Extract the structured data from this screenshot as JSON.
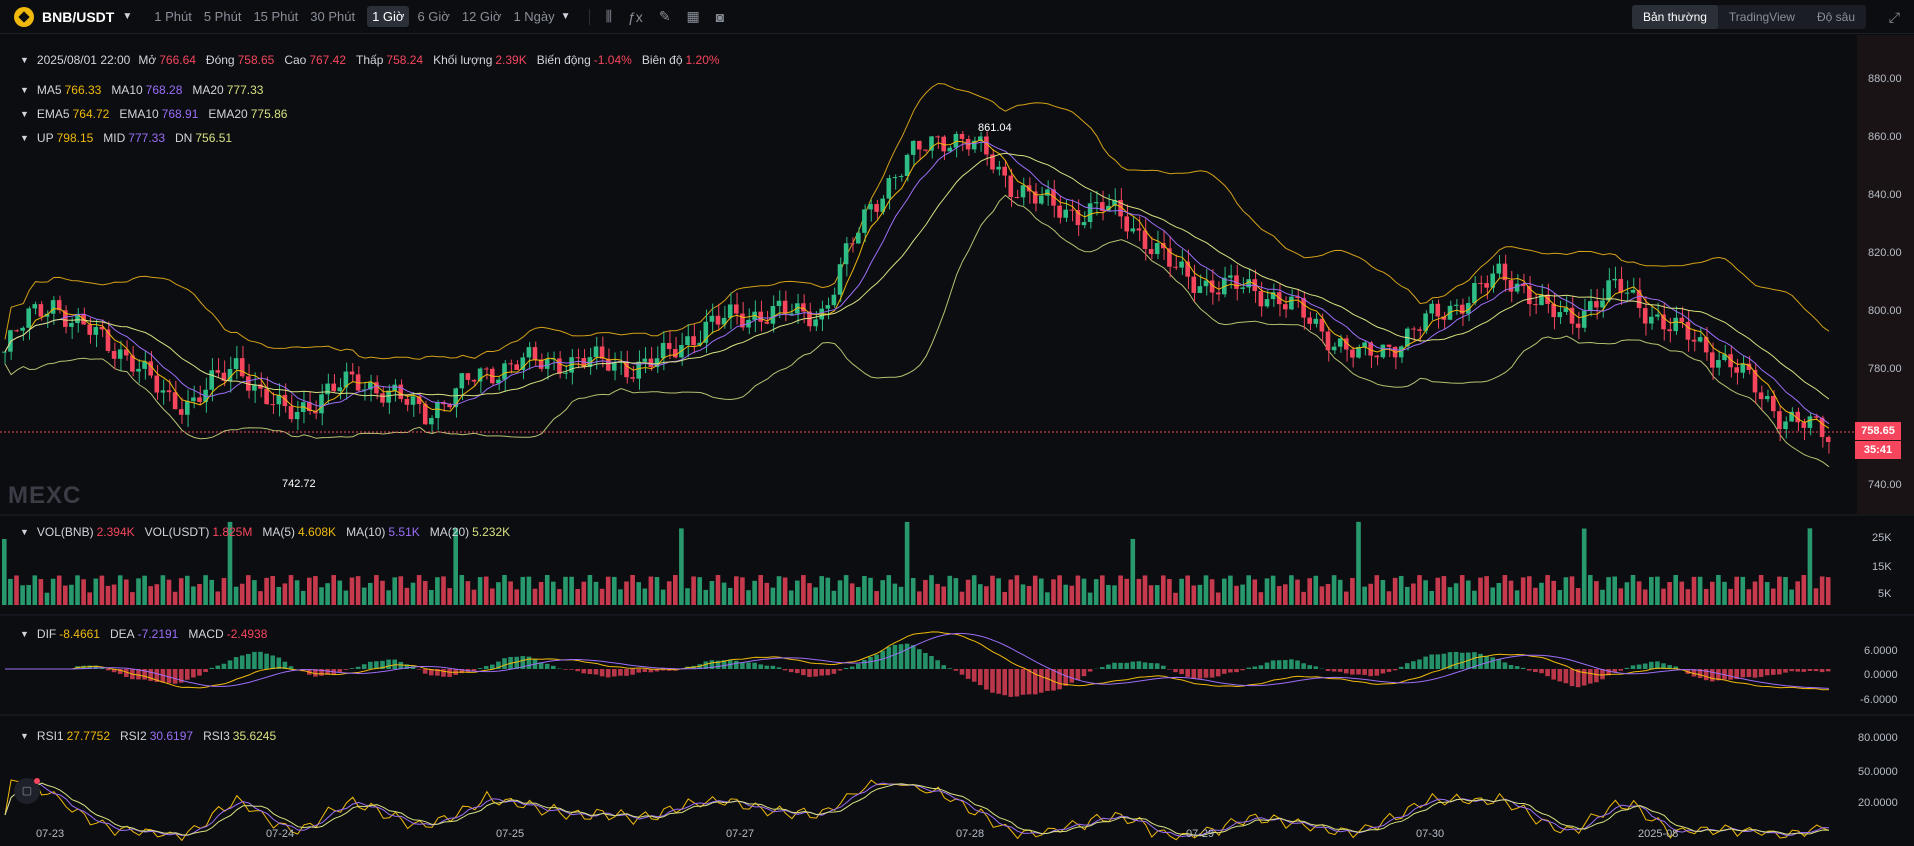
{
  "toolbar": {
    "pair": "BNB/USDT",
    "intervals": [
      "1 Phút",
      "5 Phút",
      "15 Phút",
      "30 Phút",
      "1 Giờ",
      "6 Giờ",
      "12 Giờ",
      "1 Ngày"
    ],
    "active_interval": "1 Giờ",
    "views": [
      "Bản thường",
      "TradingView",
      "Độ sâu"
    ],
    "active_view": "Bản thường"
  },
  "ohlc": {
    "date": "2025/08/01 22:00",
    "open_label": "Mở",
    "open": "766.64",
    "close_label": "Đóng",
    "close": "758.65",
    "high_label": "Cao",
    "high": "767.42",
    "low_label": "Thấp",
    "low": "758.24",
    "volume_label": "Khối lượng",
    "volume": "2.39K",
    "change_label": "Biến động",
    "change": "-1.04%",
    "amplitude_label": "Biên độ",
    "amplitude": "1.20%"
  },
  "ma": {
    "ma5_label": "MA5",
    "ma5": "766.33",
    "ma10_label": "MA10",
    "ma10": "768.28",
    "ma20_label": "MA20",
    "ma20": "777.33"
  },
  "ema": {
    "ema5_label": "EMA5",
    "ema5": "764.72",
    "ema10_label": "EMA10",
    "ema10": "768.91",
    "ema20_label": "EMA20",
    "ema20": "775.86"
  },
  "boll": {
    "up_label": "UP",
    "up": "798.15",
    "mid_label": "MID",
    "mid": "777.33",
    "dn_label": "DN",
    "dn": "756.51"
  },
  "vol": {
    "vol_bnb_label": "VOL(BNB)",
    "vol_bnb": "2.394K",
    "vol_usdt_label": "VOL(USDT)",
    "vol_usdt": "1.825M",
    "ma5_label": "MA(5)",
    "ma5": "4.608K",
    "ma10_label": "MA(10)",
    "ma10": "5.51K",
    "ma20_label": "MA(20)",
    "ma20": "5.232K"
  },
  "macd": {
    "dif_label": "DIF",
    "dif": "-8.4661",
    "dea_label": "DEA",
    "dea": "-7.2191",
    "macd_label": "MACD",
    "macd": "-2.4938"
  },
  "rsi": {
    "rsi1_label": "RSI1",
    "rsi1": "27.7752",
    "rsi2_label": "RSI2",
    "rsi2": "30.6197",
    "rsi3_label": "RSI3",
    "rsi3": "35.6245"
  },
  "price_axis": [
    "880.00",
    "860.00",
    "840.00",
    "820.00",
    "800.00",
    "780.00",
    "740.00"
  ],
  "vol_axis": [
    "25K",
    "15K",
    "5K"
  ],
  "macd_axis": [
    "6.0000",
    "0.0000",
    "-6.0000"
  ],
  "rsi_axis": [
    "80.0000",
    "50.0000",
    "20.0000"
  ],
  "time_axis": [
    "07-23",
    "07-24",
    "07-25",
    "07-27",
    "07-28",
    "07-29",
    "07-30",
    "2025-08"
  ],
  "last_price": "758.65",
  "countdown": "35:41",
  "max_marker": "861.04",
  "min_marker": "742.72",
  "watermark": "MEXC",
  "colors": {
    "up": "#2ebd85",
    "down": "#f6465d",
    "ma5": "#f0b90b",
    "ma10": "#9c6ef7",
    "ma20": "#d8e080",
    "background": "#0b0d11"
  },
  "chart_data": {
    "type": "candlestick",
    "price_ylim": [
      735,
      885
    ],
    "close_path": [
      785,
      796,
      802,
      793,
      791,
      785,
      777,
      770,
      768,
      775,
      782,
      770,
      765,
      768,
      772,
      776,
      773,
      769,
      765,
      770,
      776,
      779,
      782,
      781,
      782,
      782,
      781,
      780,
      782,
      788,
      793,
      796,
      797,
      798,
      797,
      798,
      816,
      832,
      842,
      850,
      855,
      854,
      849,
      840,
      835,
      832,
      830,
      832,
      828,
      820,
      812,
      808,
      806,
      806,
      804,
      800,
      794,
      788,
      783,
      786,
      790,
      796,
      800,
      805,
      810,
      806,
      798,
      795,
      802,
      806,
      800,
      794,
      790,
      785,
      780,
      772,
      764,
      761,
      758
    ]
  }
}
